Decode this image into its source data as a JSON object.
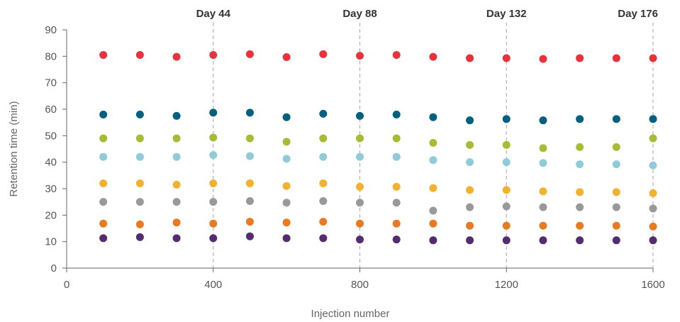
{
  "chart_data": {
    "type": "scatter",
    "title": "",
    "xlabel": "Injection number",
    "ylabel": "Retention time (min)",
    "xlim": [
      0,
      1600
    ],
    "ylim": [
      0,
      90
    ],
    "xticks": [
      0,
      400,
      800,
      1200,
      1600
    ],
    "yticks": [
      0,
      10,
      20,
      30,
      40,
      50,
      60,
      70,
      80,
      90
    ],
    "grid": false,
    "legend": "none",
    "x": [
      100,
      200,
      300,
      400,
      500,
      600,
      700,
      800,
      900,
      1000,
      1100,
      1200,
      1300,
      1400,
      1500,
      1600
    ],
    "markers": [
      {
        "x": 400,
        "label": "Day 44"
      },
      {
        "x": 800,
        "label": "Day 88"
      },
      {
        "x": 1200,
        "label": "Day 132"
      },
      {
        "x": 1600,
        "label": "Day 176"
      }
    ],
    "series": [
      {
        "color": "#e8323c",
        "values": [
          80.5,
          80.5,
          79.8,
          80.5,
          80.8,
          79.7,
          80.8,
          80.2,
          80.5,
          79.8,
          79.3,
          79.3,
          79.0,
          79.3,
          79.3,
          79.3
        ]
      },
      {
        "color": "#006080",
        "values": [
          58.0,
          58.0,
          57.5,
          58.7,
          58.7,
          57.0,
          58.3,
          57.5,
          58.0,
          57.0,
          55.8,
          56.3,
          55.8,
          56.3,
          56.3,
          56.3
        ]
      },
      {
        "color": "#a6bc35",
        "values": [
          49.0,
          49.0,
          49.0,
          49.3,
          49.0,
          47.7,
          49.0,
          49.0,
          49.0,
          47.3,
          46.5,
          46.5,
          45.3,
          45.7,
          45.7,
          49.0
        ]
      },
      {
        "color": "#8fcbd8",
        "values": [
          42.0,
          42.0,
          42.0,
          42.7,
          42.3,
          41.3,
          42.0,
          42.0,
          42.0,
          40.8,
          40.0,
          40.0,
          39.7,
          39.2,
          39.2,
          38.8
        ]
      },
      {
        "color": "#f2b12e",
        "values": [
          32.0,
          32.0,
          31.5,
          32.0,
          32.0,
          31.0,
          32.0,
          30.7,
          30.7,
          30.2,
          29.5,
          29.5,
          29.0,
          28.7,
          28.7,
          28.3
        ]
      },
      {
        "color": "#999999",
        "values": [
          25.0,
          25.0,
          25.0,
          25.0,
          25.3,
          24.7,
          25.3,
          24.7,
          24.7,
          21.7,
          23.0,
          23.3,
          23.0,
          23.0,
          23.0,
          22.5
        ]
      },
      {
        "color": "#e97a22",
        "values": [
          16.8,
          16.5,
          17.2,
          16.8,
          17.5,
          17.2,
          17.5,
          16.8,
          16.8,
          16.8,
          16.0,
          16.0,
          16.0,
          16.0,
          16.0,
          15.7
        ]
      },
      {
        "color": "#542d70",
        "values": [
          11.3,
          11.7,
          11.3,
          11.3,
          12.0,
          11.3,
          11.3,
          10.8,
          10.8,
          10.5,
          10.5,
          10.5,
          10.5,
          10.5,
          10.5,
          10.5
        ]
      }
    ]
  }
}
